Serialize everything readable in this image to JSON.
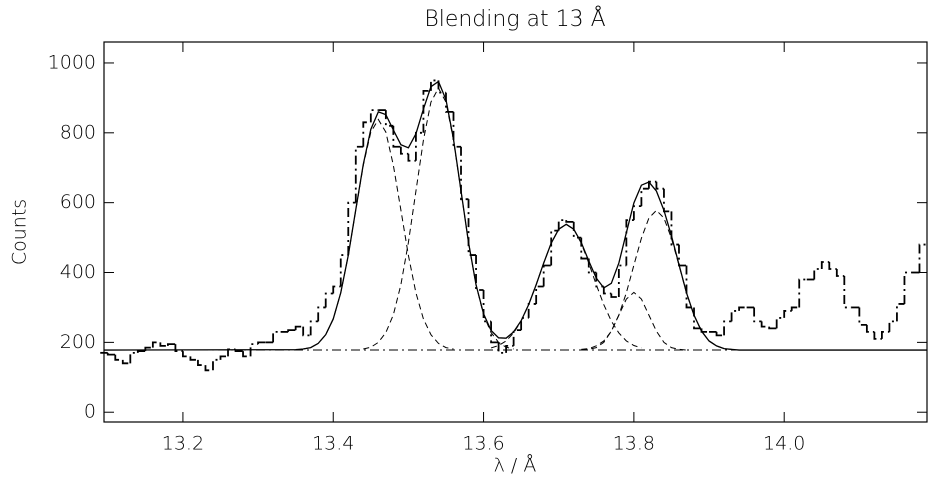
{
  "chart_data": {
    "type": "line",
    "title": "Blending at 13 Å",
    "xlabel": "λ / Å",
    "ylabel": "Counts",
    "xlim": [
      13.095,
      14.19
    ],
    "ylim": [
      -28,
      1060
    ],
    "xticks": [
      13.2,
      13.4,
      13.6,
      13.8,
      {
        "value": 14,
        "label": "14.0"
      }
    ],
    "yticks": [
      0,
      200,
      400,
      600,
      800,
      1000
    ],
    "color": "#000000",
    "series": [
      {
        "style": "dashdot",
        "bins": [
          13.09,
          13.1,
          13.11,
          13.12,
          13.13,
          13.14,
          13.15,
          13.16,
          13.17,
          13.18,
          13.19,
          13.2,
          13.21,
          13.22,
          13.23,
          13.24,
          13.25,
          13.26,
          13.27,
          13.28,
          13.29,
          13.3,
          13.31,
          13.32,
          13.33,
          13.34,
          13.35,
          13.36,
          13.37,
          13.38,
          13.39,
          13.4,
          13.41,
          13.42,
          13.43,
          13.44,
          13.45,
          13.46,
          13.47,
          13.48,
          13.49,
          13.5,
          13.51,
          13.52,
          13.53,
          13.54,
          13.55,
          13.56,
          13.57,
          13.58,
          13.59,
          13.6,
          13.61,
          13.62,
          13.63,
          13.64,
          13.65,
          13.66,
          13.67,
          13.68,
          13.69,
          13.7,
          13.71,
          13.72,
          13.73,
          13.74,
          13.75,
          13.76,
          13.77,
          13.78,
          13.79,
          13.8,
          13.81,
          13.82,
          13.83,
          13.84,
          13.85,
          13.86,
          13.87,
          13.88,
          13.89,
          13.9,
          13.91,
          13.92,
          13.93,
          13.94,
          13.95,
          13.96,
          13.97,
          13.98,
          13.99,
          14.0,
          14.01,
          14.02,
          14.03,
          14.04,
          14.05,
          14.06,
          14.07,
          14.08,
          14.09,
          14.1,
          14.11,
          14.12,
          14.13,
          14.14,
          14.15,
          14.16,
          14.17,
          14.18,
          14.19
        ],
        "values": [
          170,
          165,
          150,
          140,
          170,
          175,
          185,
          200,
          190,
          195,
          175,
          160,
          150,
          135,
          120,
          150,
          160,
          180,
          175,
          160,
          195,
          200,
          200,
          230,
          230,
          235,
          245,
          220,
          260,
          300,
          340,
          360,
          450,
          600,
          760,
          830,
          865,
          865,
          820,
          760,
          740,
          720,
          800,
          920,
          950,
          915,
          860,
          760,
          610,
          450,
          350,
          260,
          200,
          170,
          190,
          235,
          270,
          310,
          360,
          420,
          520,
          550,
          545,
          500,
          440,
          400,
          360,
          340,
          330,
          420,
          550,
          590,
          640,
          660,
          640,
          575,
          480,
          420,
          300,
          240,
          230,
          230,
          220,
          260,
          290,
          300,
          300,
          260,
          245,
          240,
          270,
          290,
          300,
          380,
          380,
          410,
          430,
          410,
          390,
          300,
          300,
          250,
          230,
          210,
          230,
          260,
          310,
          400,
          400,
          480
        ]
      },
      {
        "style": "solid",
        "x": [
          13.095,
          13.35,
          13.36,
          13.37,
          13.38,
          13.39,
          13.4,
          13.41,
          13.42,
          13.43,
          13.44,
          13.45,
          13.46,
          13.47,
          13.48,
          13.49,
          13.5,
          13.51,
          13.52,
          13.53,
          13.54,
          13.55,
          13.56,
          13.57,
          13.58,
          13.59,
          13.6,
          13.61,
          13.62,
          13.63,
          13.64,
          13.65,
          13.66,
          13.67,
          13.68,
          13.69,
          13.7,
          13.71,
          13.72,
          13.73,
          13.74,
          13.75,
          13.76,
          13.77,
          13.78,
          13.79,
          13.8,
          13.81,
          13.82,
          13.83,
          13.84,
          13.85,
          13.86,
          13.87,
          13.88,
          13.89,
          13.9,
          13.91,
          13.92,
          13.93,
          13.94,
          14.19
        ],
        "values": [
          178,
          179,
          181,
          185,
          197,
          222,
          267,
          342,
          449,
          580,
          710,
          810,
          860,
          852,
          808,
          766,
          757,
          797,
          868,
          932,
          947,
          895,
          782,
          634,
          486,
          365,
          282,
          234,
          213,
          212,
          230,
          262,
          308,
          365,
          427,
          484,
          524,
          538,
          524,
          486,
          433,
          384,
          356,
          369,
          427,
          514,
          599,
          650,
          659,
          633,
          578,
          505,
          423,
          342,
          278,
          232,
          204,
          190,
          182,
          180,
          178,
          178
        ]
      },
      {
        "style": "dashed",
        "x": [
          13.36,
          13.37,
          13.38,
          13.39,
          13.4,
          13.41,
          13.42,
          13.43,
          13.44,
          13.45,
          13.46,
          13.47,
          13.48,
          13.49,
          13.5,
          13.51,
          13.52,
          13.53,
          13.54,
          13.55,
          13.56
        ],
        "values": [
          181,
          185,
          197,
          222,
          267,
          342,
          449,
          579,
          707,
          802,
          838,
          802,
          707,
          579,
          449,
          342,
          267,
          222,
          197,
          185,
          181
        ]
      },
      {
        "style": "dashed",
        "x": [
          13.44,
          13.45,
          13.46,
          13.47,
          13.48,
          13.49,
          13.5,
          13.51,
          13.52,
          13.53,
          13.54,
          13.55,
          13.56,
          13.57,
          13.58,
          13.59,
          13.6,
          13.61,
          13.62,
          13.63,
          13.64
        ],
        "values": [
          181,
          186,
          200,
          228,
          279,
          365,
          486,
          633,
          779,
          888,
          928,
          888,
          779,
          633,
          486,
          365,
          279,
          228,
          200,
          186,
          181
        ]
      },
      {
        "style": "dashed",
        "x": [
          13.61,
          13.62,
          13.63,
          13.64,
          13.65,
          13.66,
          13.67,
          13.68,
          13.69,
          13.7,
          13.71,
          13.72,
          13.73,
          13.74,
          13.75,
          13.76,
          13.77,
          13.78,
          13.79,
          13.8,
          13.81
        ],
        "values": [
          184,
          191,
          204,
          227,
          261,
          308,
          365,
          427,
          484,
          524,
          538,
          524,
          484,
          427,
          365,
          308,
          261,
          227,
          204,
          191,
          184
        ]
      },
      {
        "style": "dashed",
        "x": [
          13.73,
          13.74,
          13.75,
          13.76,
          13.77,
          13.78,
          13.79,
          13.8,
          13.81,
          13.82,
          13.83,
          13.84,
          13.85,
          13.86,
          13.87
        ],
        "values": [
          178,
          180,
          185,
          200,
          232,
          278,
          324,
          343,
          324,
          278,
          232,
          200,
          185,
          180,
          178
        ]
      },
      {
        "style": "dashed",
        "x": [
          13.73,
          13.74,
          13.75,
          13.76,
          13.77,
          13.78,
          13.79,
          13.8,
          13.81,
          13.82,
          13.83,
          13.84,
          13.85,
          13.86,
          13.87,
          13.88,
          13.89,
          13.9,
          13.91,
          13.92,
          13.93
        ],
        "values": [
          180,
          182,
          190,
          204,
          232,
          278,
          342,
          421,
          498,
          556,
          578,
          556,
          498,
          421,
          342,
          278,
          232,
          204,
          190,
          182,
          180
        ]
      },
      {
        "style": "dashdot",
        "x": [
          13.095,
          14.19
        ],
        "values": [
          178,
          178
        ]
      }
    ]
  }
}
